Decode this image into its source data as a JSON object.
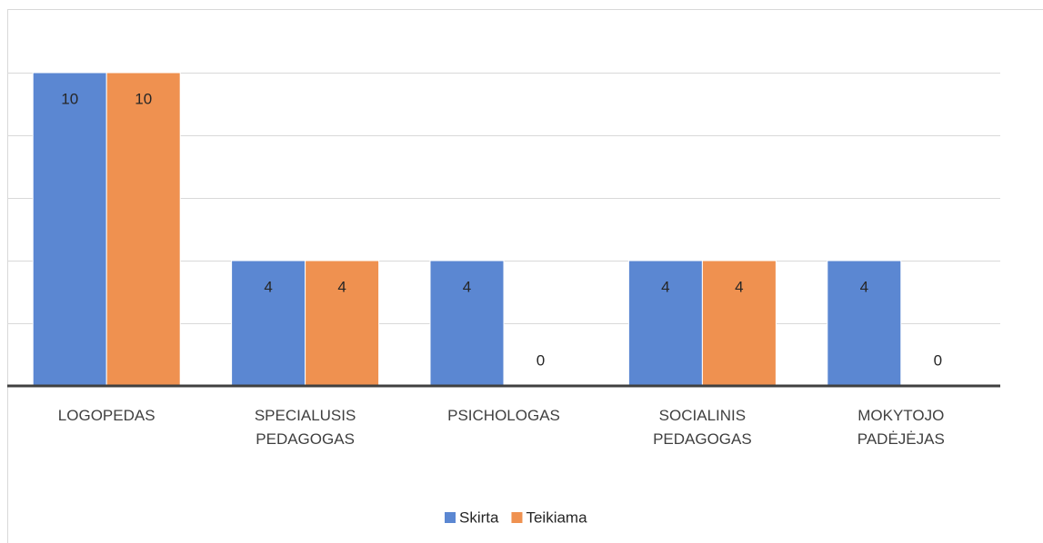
{
  "chart_data": {
    "type": "bar",
    "categories": [
      "LOGOPEDAS",
      "SPECIALUSIS PEDAGOGAS",
      "PSICHOLOGAS",
      "SOCIALINIS PEDAGOGAS",
      "MOKYTOJO PADĖJĖJAS"
    ],
    "series": [
      {
        "name": "Skirta",
        "color": "#5b87d2",
        "values": [
          10,
          4,
          4,
          4,
          4
        ]
      },
      {
        "name": "Teikiama",
        "color": "#ef9150",
        "values": [
          10,
          4,
          0,
          4,
          0
        ]
      }
    ],
    "ylim": [
      0,
      12
    ],
    "yticks": [
      0,
      2,
      4,
      6,
      8,
      10
    ],
    "grid": true,
    "legend": "bottom"
  }
}
